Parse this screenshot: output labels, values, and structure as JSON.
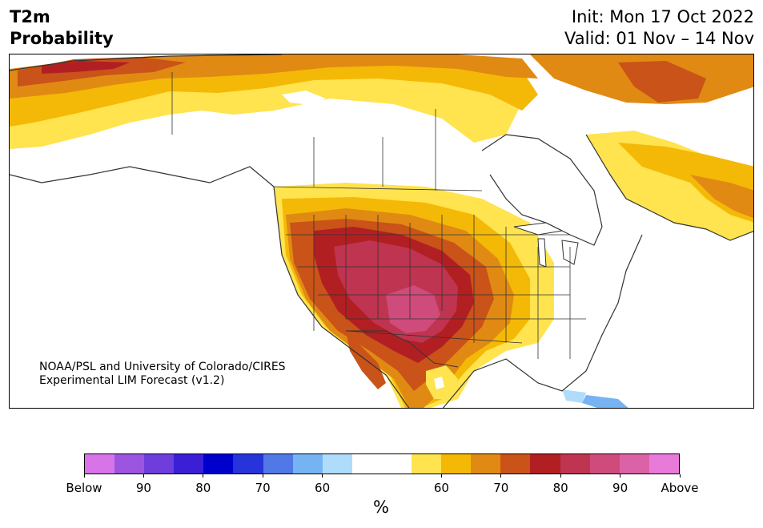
{
  "title": {
    "line1": "T2m",
    "line2": "Probability"
  },
  "meta": {
    "init": "Init: Mon 17 Oct 2022",
    "valid": "Valid: 01 Nov – 14 Nov"
  },
  "credit": {
    "line1": "NOAA/PSL and University of Colorado/CIRES",
    "line2": "Experimental LIM Forecast (v1.2)"
  },
  "colorbar": {
    "colors": [
      "#d674e8",
      "#9b55e0",
      "#6e3ddb",
      "#3a1fd6",
      "#0000cc",
      "#2734d9",
      "#5078e6",
      "#76b3f3",
      "#b0dcfc",
      "#ffffff",
      "#ffffff",
      "#ffe34f",
      "#f4b906",
      "#e08a13",
      "#c95318",
      "#b21f22",
      "#bf3450",
      "#cf4b7c",
      "#dc62a7",
      "#e87ada"
    ],
    "labels": [
      "Below",
      "90",
      "80",
      "70",
      "60",
      "60",
      "70",
      "80",
      "90",
      "Above"
    ],
    "unit": "%"
  },
  "map": {
    "region": "North America",
    "category_colors": {
      "above_60": "#ffe34f",
      "above_65": "#f4b906",
      "above_70": "#e08a13",
      "above_75": "#c95318",
      "above_80": "#b21f22",
      "above_85": "#bf3450",
      "above_90": "#cf4b7c",
      "below_55": "#b0dcfc",
      "below_60": "#76b3f3"
    }
  }
}
